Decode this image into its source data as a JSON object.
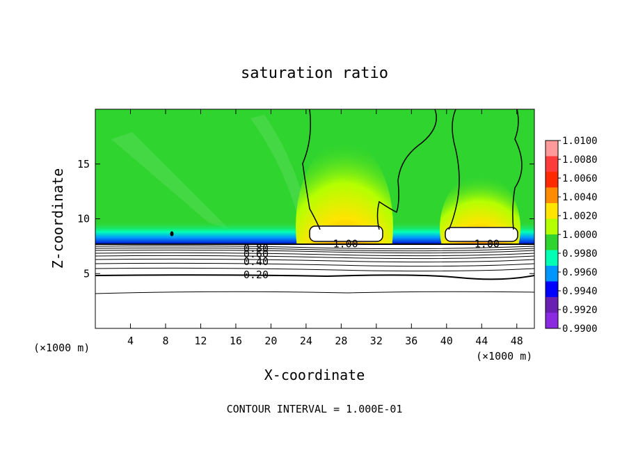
{
  "chart_data": {
    "type": "heatmap",
    "title": "saturation ratio",
    "xlabel": "X-coordinate",
    "ylabel": "Z-coordinate",
    "x_unit": "(×1000 m)",
    "xlim": [
      0,
      50
    ],
    "ylim": [
      0,
      20
    ],
    "x_ticks": [
      4,
      8,
      12,
      16,
      20,
      24,
      28,
      32,
      36,
      40,
      44,
      48
    ],
    "y_ticks": [
      5,
      10,
      15
    ],
    "colorbar": {
      "levels": [
        "1.0100",
        "1.0080",
        "1.0060",
        "1.0040",
        "1.0020",
        "1.0000",
        "0.9980",
        "0.9960",
        "0.9940",
        "0.9920",
        "0.9900"
      ],
      "colors": [
        "#ff9a9a",
        "#ff3c3c",
        "#ff2a00",
        "#ff8c00",
        "#ffe500",
        "#b4ff00",
        "#2fd42f",
        "#00ffb4",
        "#0096ff",
        "#0000ff",
        "#6a1fb3",
        "#8a2be2"
      ]
    },
    "contour_labels": [
      {
        "text": "0.80",
        "x": 18.3,
        "y": 7.3
      },
      {
        "text": "0.60",
        "x": 18.3,
        "y": 6.8
      },
      {
        "text": "0.40",
        "x": 18.3,
        "y": 6.1
      },
      {
        "text": "0.20",
        "x": 18.3,
        "y": 4.9
      },
      {
        "text": "1.00",
        "x": 28.5,
        "y": 7.7
      },
      {
        "text": "1.00",
        "x": 44.6,
        "y": 7.7
      }
    ],
    "annotation": "CONTOUR INTERVAL = 1.000E-01"
  }
}
